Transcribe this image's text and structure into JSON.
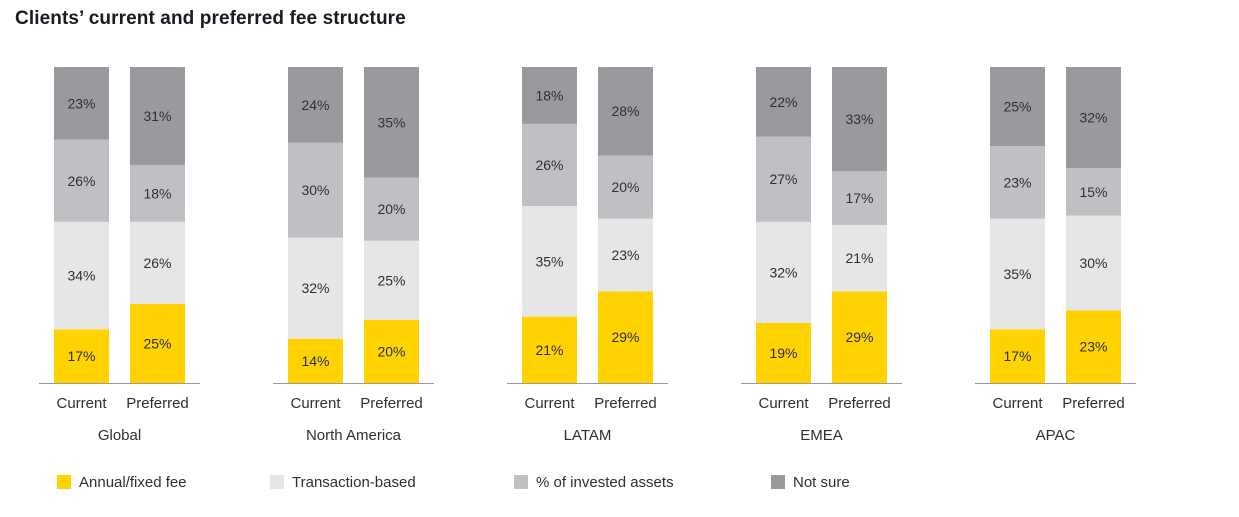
{
  "chart_data": {
    "type": "bar",
    "stacked": true,
    "title": "Clients’ current and preferred fee structure",
    "bar_labels": [
      "Current",
      "Preferred"
    ],
    "groups": [
      "Global",
      "North America",
      "LATAM",
      "EMEA",
      "APAC"
    ],
    "series": [
      {
        "name": "Annual/fixed fee",
        "color": "#ffd200",
        "values": {
          "Current": [
            17,
            14,
            21,
            19,
            17
          ],
          "Preferred": [
            25,
            20,
            29,
            29,
            23
          ]
        }
      },
      {
        "name": "Transaction-based",
        "color": "#e6e6e6",
        "values": {
          "Current": [
            34,
            32,
            35,
            32,
            35
          ],
          "Preferred": [
            26,
            25,
            23,
            21,
            30
          ]
        }
      },
      {
        "name": "% of invested assets",
        "color": "#c0c0c4",
        "values": {
          "Current": [
            26,
            30,
            26,
            27,
            23
          ],
          "Preferred": [
            18,
            20,
            20,
            17,
            15
          ]
        }
      },
      {
        "name": "Not sure",
        "color": "#9a9a9e",
        "values": {
          "Current": [
            23,
            24,
            18,
            22,
            25
          ],
          "Preferred": [
            31,
            35,
            28,
            33,
            32
          ]
        }
      }
    ],
    "ylim": [
      0,
      100
    ],
    "value_suffix": "%",
    "grid": false,
    "legend_position": "bottom"
  }
}
